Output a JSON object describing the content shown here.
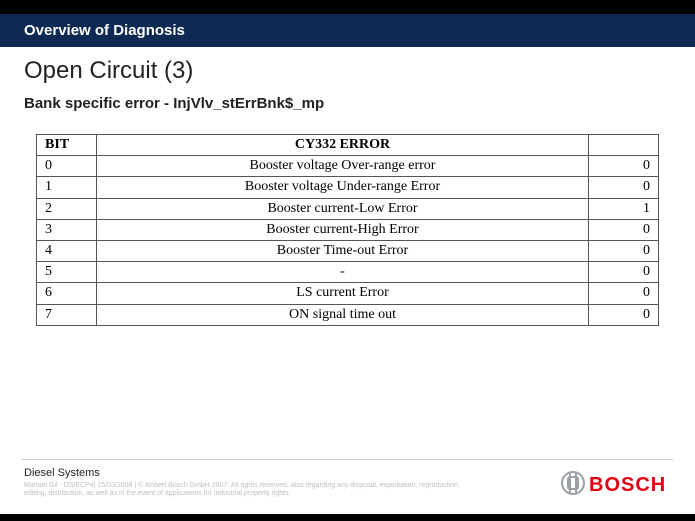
{
  "header": {
    "section_title": "Overview of Diagnosis"
  },
  "main": {
    "title": "Open Circuit (3)",
    "subtitle": "Bank specific error - InjVlv_stErrBnk$_mp"
  },
  "table": {
    "columns": [
      "BIT",
      "CY332 ERROR",
      ""
    ],
    "column_align": [
      "left",
      "center",
      "right"
    ],
    "border_color": "#555555",
    "font_family": "Times New Roman",
    "header_fontweight": "bold",
    "cell_fontsize": 14,
    "rows": [
      [
        "0",
        "Booster voltage Over-range error",
        "0"
      ],
      [
        "1",
        "Booster voltage Under-range Error",
        "0"
      ],
      [
        "2",
        "Booster current-Low Error",
        "1"
      ],
      [
        "3",
        "Booster current-High Error",
        "0"
      ],
      [
        "4",
        "Booster Time-out Error",
        "0"
      ],
      [
        "5",
        "-",
        "0"
      ],
      [
        "6",
        "LS current Error",
        "0"
      ],
      [
        "7",
        "ON signal time out",
        "0"
      ]
    ]
  },
  "footer": {
    "department": "Diesel Systems",
    "legal_line1": "Manuel Gil - DS/ECP4| 15/03/2008 | © Robert Bosch GmbH 2007. All rights reserved, also regarding any disposal, exploitation, reproduction,",
    "legal_line2": "editing, distribution, as well as in the event of applications for industrial property rights.",
    "logo": {
      "text": "BOSCH",
      "text_color": "#e20015",
      "accent_color": "#9aa0a6"
    }
  },
  "colors": {
    "header_bg": "#0f2a52",
    "header_text": "#ffffff",
    "page_bg": "#ffffff",
    "topbar": "#000000",
    "title_color": "#222222",
    "legal_color": "#bfbfbf",
    "divider": "#c9c9c9"
  }
}
